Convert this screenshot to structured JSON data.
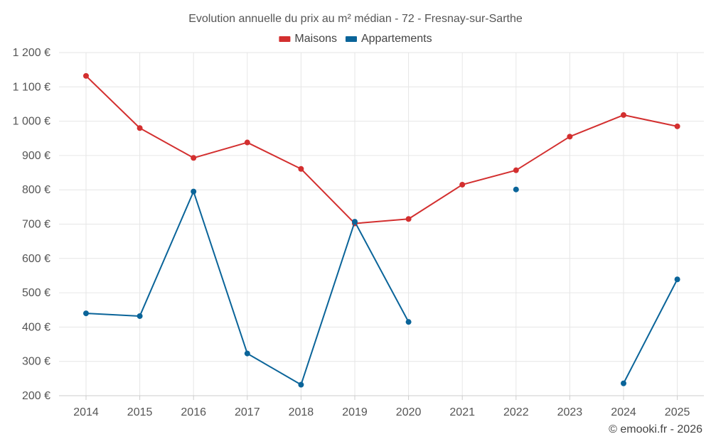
{
  "chart_data": {
    "type": "line",
    "title": "Evolution annuelle du prix au m² médian - 72 - Fresnay-sur-Sarthe",
    "categories": [
      "2014",
      "2015",
      "2016",
      "2017",
      "2018",
      "2019",
      "2020",
      "2021",
      "2022",
      "2023",
      "2024",
      "2025"
    ],
    "ylim": [
      200,
      1200
    ],
    "yticks": [
      200,
      300,
      400,
      500,
      600,
      700,
      800,
      900,
      1000,
      1100,
      1200
    ],
    "ytick_labels": [
      "200 €",
      "300 €",
      "400 €",
      "500 €",
      "600 €",
      "700 €",
      "800 €",
      "900 €",
      "1 000 €",
      "1 100 €",
      "1 200 €"
    ],
    "legend_position": "top-center",
    "grid": true,
    "series": [
      {
        "name": "Maisons",
        "color": "#d32f2f",
        "values": [
          1132,
          980,
          893,
          938,
          861,
          702,
          715,
          815,
          857,
          955,
          1018,
          985
        ]
      },
      {
        "name": "Appartements",
        "color": "#0a6499",
        "values": [
          440,
          432,
          795,
          323,
          232,
          707,
          415,
          null,
          801,
          null,
          236,
          539
        ]
      }
    ]
  },
  "credit": "© emooki.fr - 2026"
}
